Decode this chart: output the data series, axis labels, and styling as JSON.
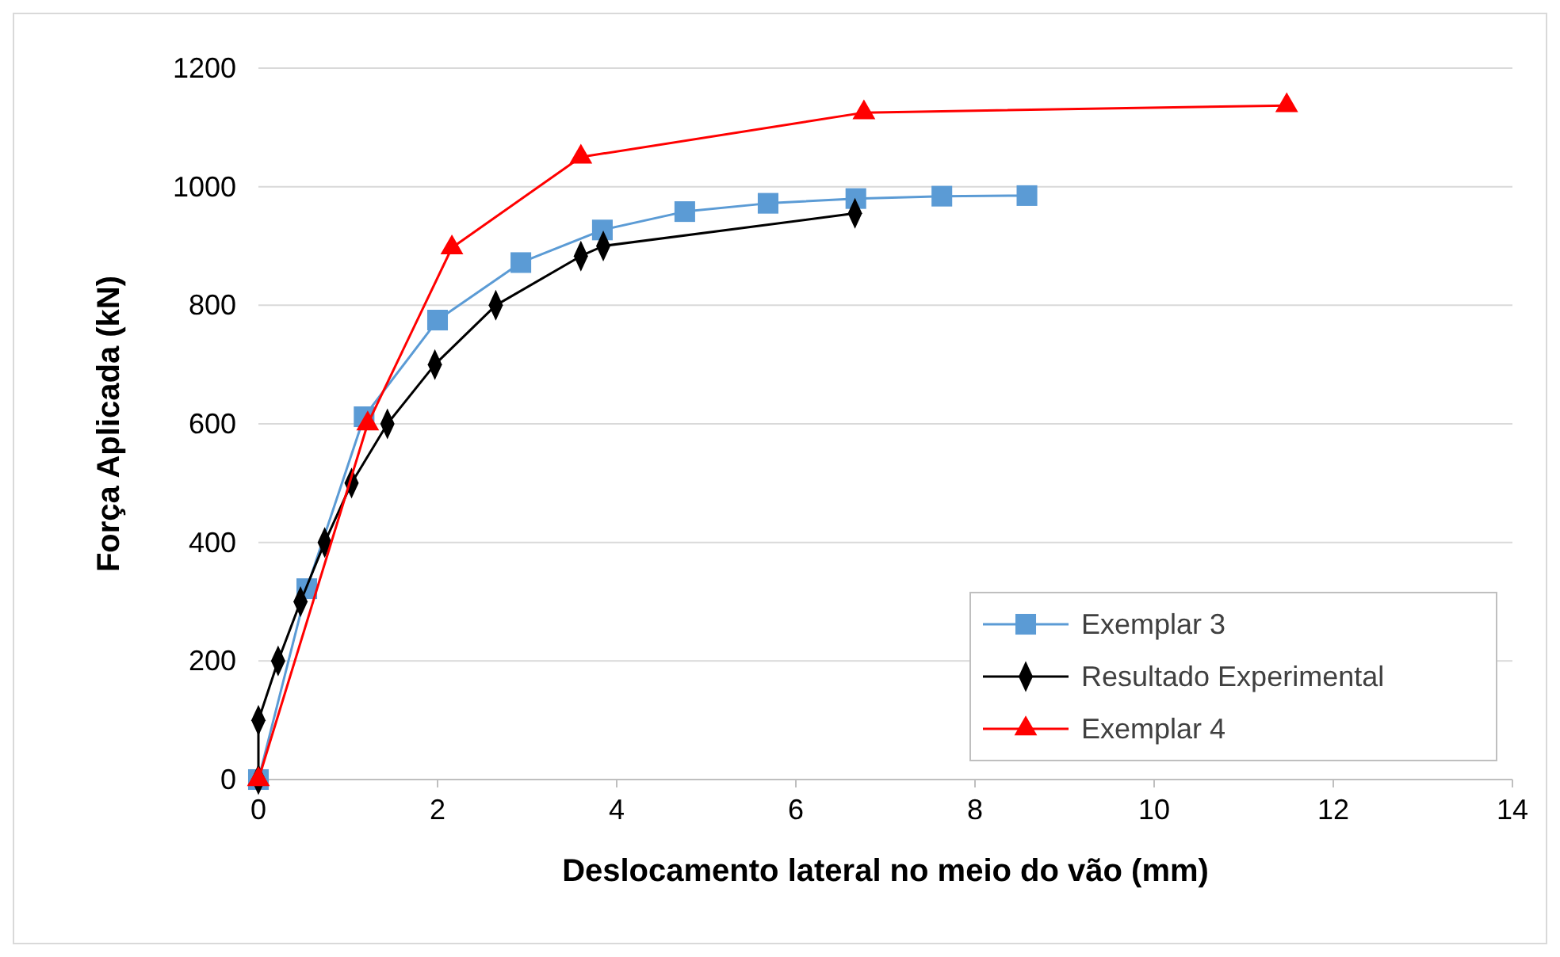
{
  "chart_data": {
    "type": "line",
    "xlabel": "Deslocamento lateral no meio do vão (mm)",
    "ylabel": "Força Aplicada (kN)",
    "xlim": [
      0,
      14
    ],
    "xticks": [
      0,
      2,
      4,
      6,
      8,
      10,
      12,
      14
    ],
    "ylim": [
      0,
      1200
    ],
    "yticks": [
      0,
      200,
      400,
      600,
      800,
      1000,
      1200
    ],
    "grid": "y",
    "legend": "bottom right",
    "series": [
      {
        "name": "Exemplar 3",
        "color": "#5b9bd5",
        "marker": "square",
        "x": [
          0,
          0.54,
          1.18,
          2.0,
          2.93,
          3.84,
          4.76,
          5.69,
          6.67,
          7.63,
          8.58
        ],
        "values": [
          0,
          322,
          612,
          775,
          872,
          927,
          958,
          972,
          980,
          984,
          985
        ]
      },
      {
        "name": "Resultado Experimental",
        "color": "#000000",
        "marker": "diamond",
        "x": [
          0,
          0,
          0.22,
          0.47,
          0.74,
          1.04,
          1.44,
          1.97,
          2.65,
          3.6,
          3.85,
          6.66
        ],
        "values": [
          0,
          100,
          200,
          300,
          400,
          500,
          600,
          700,
          800,
          883,
          900,
          955
        ]
      },
      {
        "name": "Exemplar 4",
        "color": "#ff0000",
        "marker": "triangle",
        "x": [
          0,
          1.22,
          2.16,
          3.6,
          6.76,
          11.48
        ],
        "values": [
          0,
          600,
          897,
          1050,
          1125,
          1137
        ]
      }
    ]
  }
}
